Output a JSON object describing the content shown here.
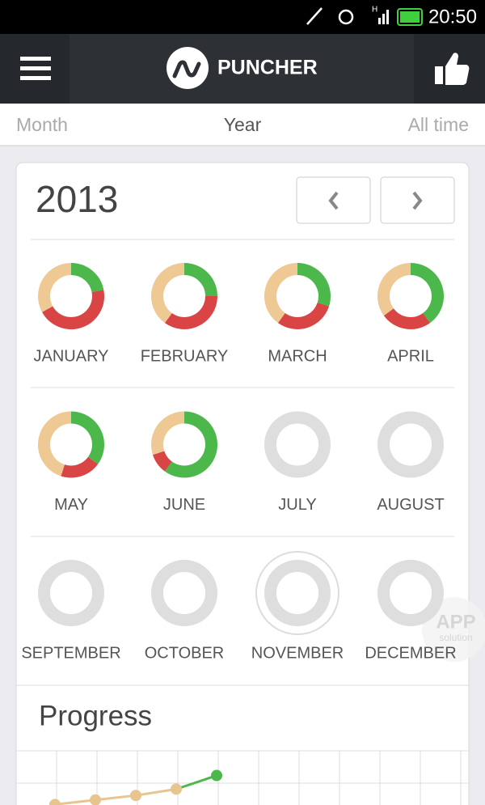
{
  "status_bar": {
    "time": "20:50",
    "network": "H"
  },
  "header": {
    "app_name": "PUNCHER"
  },
  "tabs": [
    "Month",
    "Year",
    "All time"
  ],
  "calendar": {
    "year": "2013",
    "segment_colors": [
      "#4cb84c",
      "#d94545",
      "#efc994"
    ],
    "empty_color": "#dedede",
    "months": [
      {
        "name": "JANUARY",
        "segments": [
          22,
          45,
          33
        ]
      },
      {
        "name": "FEBRUARY",
        "segments": [
          25,
          35,
          40
        ]
      },
      {
        "name": "MARCH",
        "segments": [
          30,
          30,
          40
        ]
      },
      {
        "name": "APRIL",
        "segments": [
          40,
          25,
          35
        ]
      },
      {
        "name": "MAY",
        "segments": [
          35,
          20,
          45
        ]
      },
      {
        "name": "JUNE",
        "segments": [
          60,
          10,
          30
        ]
      },
      {
        "name": "JULY",
        "segments": []
      },
      {
        "name": "AUGUST",
        "segments": []
      },
      {
        "name": "SEPTEMBER",
        "segments": []
      },
      {
        "name": "OCTOBER",
        "segments": []
      },
      {
        "name": "NOVEMBER",
        "segments": [],
        "current": true
      },
      {
        "name": "DECEMBER",
        "segments": []
      }
    ]
  },
  "progress": {
    "title": "Progress",
    "values": [
      1,
      2,
      3,
      4.4,
      7.4
    ],
    "ylim": [
      0,
      10
    ],
    "line_color": "#e8c48e",
    "last_color": "#4cb84c"
  },
  "watermark": {
    "line1": "APP",
    "line2": "solution"
  }
}
